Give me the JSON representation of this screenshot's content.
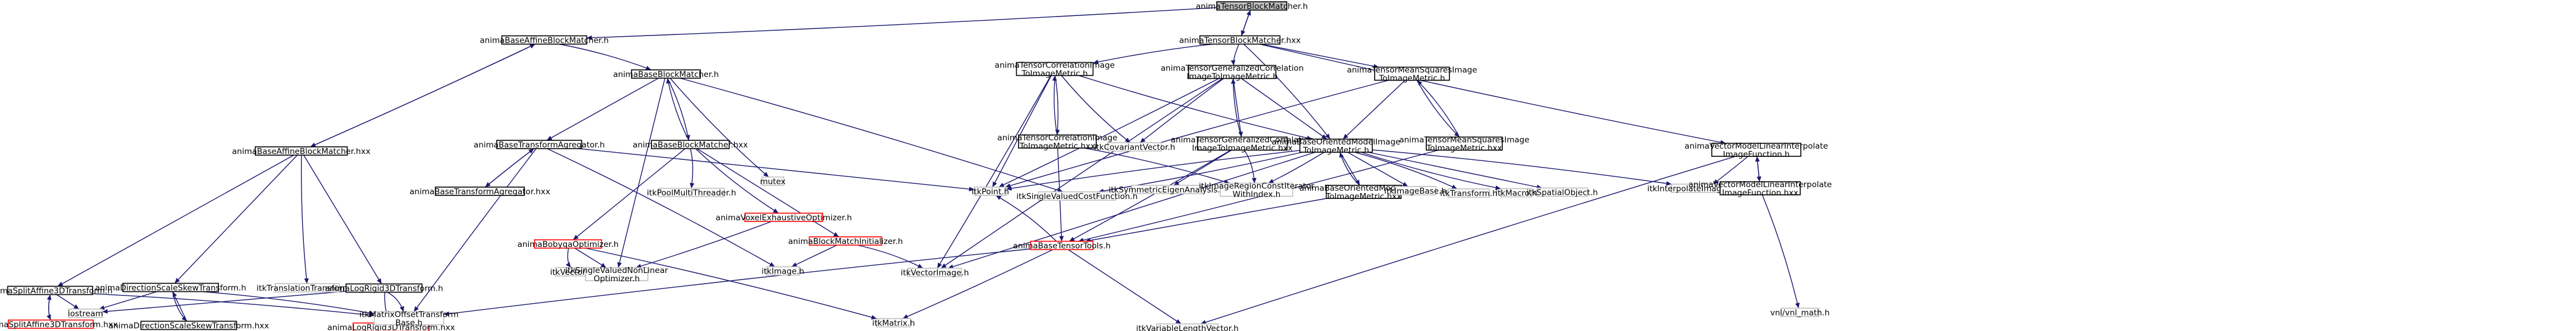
{
  "diagram": {
    "colors": {
      "edge": "#191970",
      "edge_dark": "#404040",
      "node_border": "#000000",
      "node_border_red": "#ff0000",
      "node_border_gray": "#bfbfbf",
      "node_fill": "#ffffff",
      "root_fill": "#bfbfbf",
      "text": "#000000"
    },
    "nodes": [
      {
        "id": "n0",
        "label": "animaTensorBlockMatcher.h",
        "style": "root"
      },
      {
        "id": "n1",
        "label": "animaBaseAffineBlockMatcher.h",
        "style": "normal"
      },
      {
        "id": "n2",
        "label": "animaTensorBlockMatcher.hxx",
        "style": "normal"
      },
      {
        "id": "n3",
        "label": "animaBaseBlockMatcher.h",
        "style": "normal"
      },
      {
        "id": "n4",
        "label": "animaBaseAffineBlockMatcher.hxx",
        "style": "normal"
      },
      {
        "id": "n5",
        "label": "animaBaseTransformAgregator.h",
        "style": "normal"
      },
      {
        "id": "n6",
        "label": "animaBaseBlockMatcher.hxx",
        "style": "normal"
      },
      {
        "id": "n7",
        "label": "mutex",
        "style": "gray"
      },
      {
        "id": "n8",
        "label": "animaBaseTransformAgregator.hxx",
        "style": "normal"
      },
      {
        "id": "n9",
        "label": "animaBobyqaOptimizer.h",
        "style": "red"
      },
      {
        "id": "n10",
        "label": "itkPoolMultiThreader.h",
        "style": "gray"
      },
      {
        "id": "n11",
        "label": "animaVoxelExhaustiveOptimizer.h",
        "style": "red"
      },
      {
        "id": "n12",
        "label": "animaBlockMatchInitializer.h",
        "style": "red"
      },
      {
        "id": "n13",
        "label": "animaSplitAffine3DTransform.h",
        "style": "normal"
      },
      {
        "id": "n14",
        "label": "animaDirectionScaleSkewTransform.h",
        "style": "normal"
      },
      {
        "id": "n15",
        "label": "itkTranslationTransform.h",
        "style": "gray"
      },
      {
        "id": "n16",
        "label": "animaLogRigid3DTransform.h",
        "style": "normal"
      },
      {
        "id": "n17",
        "label": "animaSplitAffine3DTransform.hxx",
        "style": "red"
      },
      {
        "id": "n18",
        "label": "iostream",
        "style": "gray"
      },
      {
        "id": "n19",
        "label": "animaDirectionScaleSkewTransform.hxx",
        "style": "normal"
      },
      {
        "id": "n20",
        "label": "animaLogRigid3DTransform.hxx",
        "style": "red"
      },
      {
        "id": "n21",
        "label": [
          "itkMatrixOffsetTransform",
          "Base.h"
        ],
        "style": "gray"
      },
      {
        "id": "n22",
        "label": "itkVector.h",
        "style": "gray"
      },
      {
        "id": "n23",
        "label": [
          "itkSingleValuedNonLinear",
          "Optimizer.h"
        ],
        "style": "gray"
      },
      {
        "id": "n24",
        "label": "itkMatrix.h",
        "style": "gray"
      },
      {
        "id": "n25",
        "label": "itkImage.h",
        "style": "gray"
      },
      {
        "id": "n26",
        "label": "itkVectorImage.h",
        "style": "gray"
      },
      {
        "id": "n27",
        "label": [
          "animaTensorCorrelationImage",
          "ToImageMetric.h"
        ],
        "style": "normal"
      },
      {
        "id": "n28",
        "label": [
          "animaTensorGeneralizedCorrelation",
          "ImageToImageMetric.h"
        ],
        "style": "normal"
      },
      {
        "id": "n29",
        "label": [
          "animaTensorMeanSquaresImage",
          "ToImageMetric.h"
        ],
        "style": "normal"
      },
      {
        "id": "n30",
        "label": [
          "animaVectorModelLinearInterpolate",
          "ImageFunction.h"
        ],
        "style": "normal"
      },
      {
        "id": "n31",
        "label": [
          "animaTensorCorrelationImage",
          "ToImageMetric.hxx"
        ],
        "style": "normal"
      },
      {
        "id": "n32",
        "label": "itkCovariantVector.h",
        "style": "gray"
      },
      {
        "id": "n33",
        "label": [
          "animaTensorGeneralizedCorrelation",
          "ImageToImageMetric.hxx"
        ],
        "style": "normal"
      },
      {
        "id": "n34",
        "label": [
          "animaBaseOrientedModelImage",
          "ToImageMetric.h"
        ],
        "style": "normal"
      },
      {
        "id": "n35",
        "label": [
          "animaTensorMeanSquaresImage",
          "ToImageMetric.hxx"
        ],
        "style": "normal"
      },
      {
        "id": "n36",
        "label": "itkInterpolateImageFunction.h",
        "style": "gray"
      },
      {
        "id": "n37",
        "label": [
          "animaVectorModelLinearInterpolate",
          "ImageFunction.hxx"
        ],
        "style": "normal"
      },
      {
        "id": "n38",
        "label": "itkPoint.h",
        "style": "gray"
      },
      {
        "id": "n39",
        "label": "itkSingleValuedCostFunction.h",
        "style": "gray"
      },
      {
        "id": "n40",
        "label": "itkSymmetricEigenAnalysis.h",
        "style": "gray"
      },
      {
        "id": "n41",
        "label": [
          "itkImageRegionConstIterator",
          "WithIndex.h"
        ],
        "style": "gray"
      },
      {
        "id": "n42",
        "label": [
          "animaBaseOrientedModelImage",
          "ToImageMetric.hxx"
        ],
        "style": "normal"
      },
      {
        "id": "n43",
        "label": "itkImageBase.h",
        "style": "gray"
      },
      {
        "id": "n44",
        "label": "itkTransform.h",
        "style": "gray"
      },
      {
        "id": "n45",
        "label": "itkMacro.h",
        "style": "gray"
      },
      {
        "id": "n46",
        "label": "itkSpatialObject.h",
        "style": "gray"
      },
      {
        "id": "n47",
        "label": "animaBaseTensorTools.h",
        "style": "red"
      },
      {
        "id": "n48",
        "label": "vnl/vnl_math.h",
        "style": "gray"
      },
      {
        "id": "n49",
        "label": "itkVariableLengthVector.h",
        "style": "gray"
      }
    ],
    "edges": [
      [
        "n0",
        "n1"
      ],
      [
        "n0",
        "n2"
      ],
      [
        "n1",
        "n3"
      ],
      [
        "n1",
        "n4"
      ],
      [
        "n2",
        "n0"
      ],
      [
        "n2",
        "n27"
      ],
      [
        "n2",
        "n28"
      ],
      [
        "n2",
        "n29"
      ],
      [
        "n2",
        "n34"
      ],
      [
        "n2",
        "n30"
      ],
      [
        "n3",
        "n5"
      ],
      [
        "n3",
        "n6"
      ],
      [
        "n3",
        "n7"
      ],
      [
        "n3",
        "n23"
      ],
      [
        "n3",
        "n39"
      ],
      [
        "n4",
        "n1"
      ],
      [
        "n4",
        "n13"
      ],
      [
        "n4",
        "n14"
      ],
      [
        "n4",
        "n15"
      ],
      [
        "n4",
        "n16"
      ],
      [
        "n5",
        "n8"
      ],
      [
        "n5",
        "n21"
      ],
      [
        "n5",
        "n38"
      ],
      [
        "n5",
        "n25"
      ],
      [
        "n6",
        "n3"
      ],
      [
        "n6",
        "n9"
      ],
      [
        "n6",
        "n10"
      ],
      [
        "n6",
        "n11"
      ],
      [
        "n6",
        "n12"
      ],
      [
        "n8",
        "n5"
      ],
      [
        "n9",
        "n22"
      ],
      [
        "n9",
        "n23"
      ],
      [
        "n9",
        "n24"
      ],
      [
        "n11",
        "n23"
      ],
      [
        "n12",
        "n25"
      ],
      [
        "n12",
        "n26"
      ],
      [
        "n13",
        "n17"
      ],
      [
        "n13",
        "n18"
      ],
      [
        "n13",
        "n21"
      ],
      [
        "n14",
        "n19"
      ],
      [
        "n14",
        "n18"
      ],
      [
        "n14",
        "n21"
      ],
      [
        "n16",
        "n20"
      ],
      [
        "n16",
        "n18"
      ],
      [
        "n16",
        "n21"
      ],
      [
        "n17",
        "n13"
      ],
      [
        "n19",
        "n14"
      ],
      [
        "n27",
        "n31"
      ],
      [
        "n27",
        "n32"
      ],
      [
        "n27",
        "n38"
      ],
      [
        "n27",
        "n26"
      ],
      [
        "n27",
        "n34"
      ],
      [
        "n28",
        "n33"
      ],
      [
        "n28",
        "n32"
      ],
      [
        "n28",
        "n38"
      ],
      [
        "n28",
        "n34"
      ],
      [
        "n28",
        "n26"
      ],
      [
        "n29",
        "n35"
      ],
      [
        "n29",
        "n34"
      ],
      [
        "n29",
        "n38"
      ],
      [
        "n30",
        "n36"
      ],
      [
        "n30",
        "n37"
      ],
      [
        "n30",
        "n49"
      ],
      [
        "n31",
        "n27"
      ],
      [
        "n31",
        "n47"
      ],
      [
        "n31",
        "n41"
      ],
      [
        "n33",
        "n28"
      ],
      [
        "n33",
        "n40"
      ],
      [
        "n33",
        "n41"
      ],
      [
        "n33",
        "n47"
      ],
      [
        "n34",
        "n42"
      ],
      [
        "n34",
        "n38"
      ],
      [
        "n34",
        "n39"
      ],
      [
        "n34",
        "n43"
      ],
      [
        "n34",
        "n44"
      ],
      [
        "n34",
        "n45"
      ],
      [
        "n34",
        "n46"
      ],
      [
        "n34",
        "n36"
      ],
      [
        "n34",
        "n41"
      ],
      [
        "n34",
        "n26"
      ],
      [
        "n35",
        "n29"
      ],
      [
        "n35",
        "n47"
      ],
      [
        "n37",
        "n30"
      ],
      [
        "n37",
        "n48"
      ],
      [
        "n42",
        "n34"
      ],
      [
        "n42",
        "n47"
      ],
      [
        "n47",
        "n21"
      ],
      [
        "n47",
        "n24"
      ],
      [
        "n47",
        "n49"
      ],
      [
        "n47",
        "n38"
      ]
    ]
  }
}
